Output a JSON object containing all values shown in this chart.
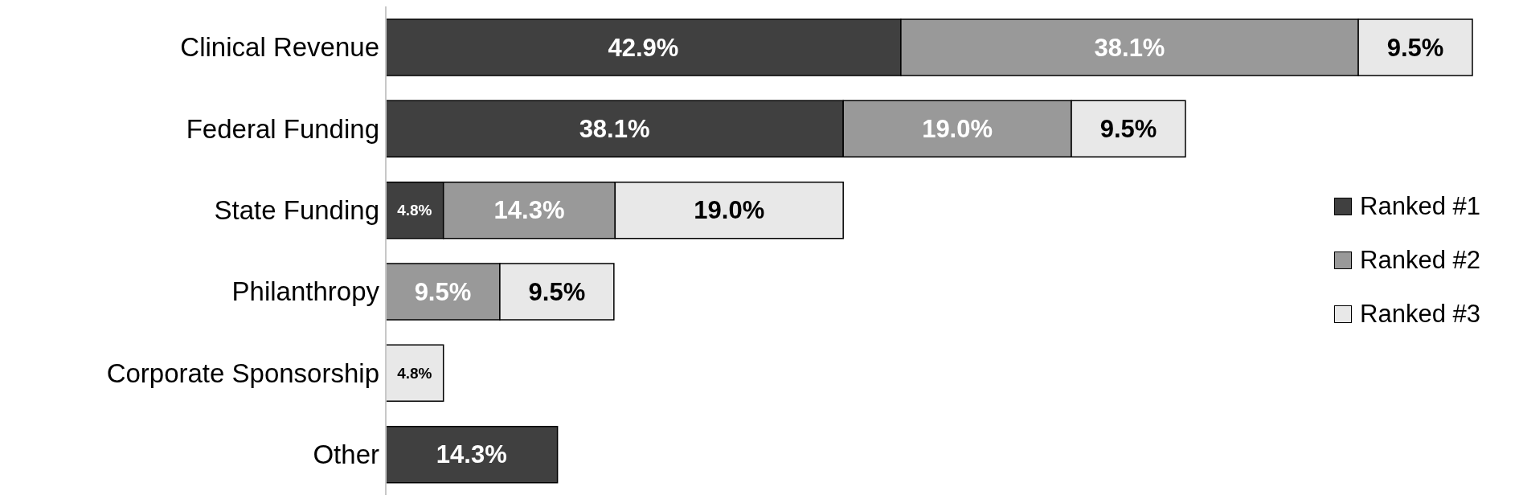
{
  "chart_data": {
    "type": "bar",
    "orientation": "horizontal",
    "stacked": true,
    "legend": "right",
    "grid": false,
    "tick_labels": "y",
    "categories": [
      "Clinical Revenue",
      "Federal Funding",
      "State Funding",
      "Philanthropy",
      "Corporate Sponsorship",
      "Other"
    ],
    "series": [
      {
        "name": "Ranked #1",
        "color": "#404040",
        "values": [
          42.9,
          38.1,
          4.8,
          null,
          null,
          14.3
        ],
        "value_labels": [
          "42.9%",
          "38.1%",
          "4.8%",
          null,
          null,
          "14.3%"
        ]
      },
      {
        "name": "Ranked #2",
        "color": "#999999",
        "values": [
          38.1,
          19.0,
          14.3,
          9.5,
          null,
          null
        ],
        "value_labels": [
          "38.1%",
          "19.0%",
          "14.3%",
          "9.5%",
          null,
          null
        ]
      },
      {
        "name": "Ranked #3",
        "color": "#e8e8e8",
        "values": [
          9.5,
          9.5,
          19.0,
          9.5,
          4.8,
          null
        ],
        "value_labels": [
          "9.5%",
          "9.5%",
          "19.0%",
          "9.5%",
          "4.8%",
          null
        ]
      }
    ]
  }
}
